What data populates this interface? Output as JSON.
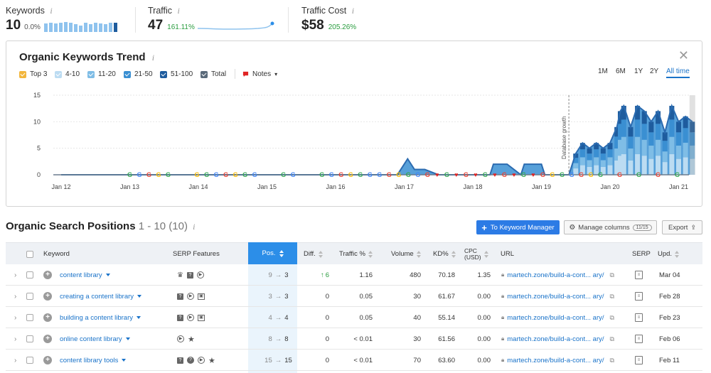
{
  "metrics": {
    "keywords": {
      "label": "Keywords",
      "value": "10",
      "delta": "0.0%"
    },
    "traffic": {
      "label": "Traffic",
      "value": "47",
      "delta": "161.11%"
    },
    "traffic_cost": {
      "label": "Traffic Cost",
      "value": "$58",
      "delta": "205.26%"
    },
    "info_glyph": "i"
  },
  "trend": {
    "title": "Organic Keywords Trend",
    "legend": [
      {
        "label": "Top 3",
        "color": "#f2b63c"
      },
      {
        "label": "4-10",
        "color": "#bcdcf2"
      },
      {
        "label": "11-20",
        "color": "#7fbde6"
      },
      {
        "label": "21-50",
        "color": "#3a8fd2"
      },
      {
        "label": "51-100",
        "color": "#1e5c9e"
      },
      {
        "label": "Total",
        "color": "#5a6a7a"
      }
    ],
    "notes_label": "Notes",
    "ranges": [
      "1M",
      "6M",
      "1Y",
      "2Y",
      "All time"
    ],
    "active_range": "All time",
    "annotation": "Database growth"
  },
  "chart_data": {
    "type": "area",
    "title": "Organic Keywords Trend",
    "x_tick_labels": [
      "Jan 12",
      "Jan 13",
      "Jan 14",
      "Jan 15",
      "Jan 16",
      "Jan 17",
      "Jan 18",
      "Jan 19",
      "Jan 20",
      "Jan 21"
    ],
    "y_ticks": [
      0,
      5,
      10,
      15
    ],
    "ylim": [
      0,
      15
    ],
    "grid": true,
    "vertical_marker": {
      "x": "Jan 19.4",
      "label": "Database growth"
    },
    "series": [
      {
        "name": "Total",
        "x": [
          12.0,
          16.9,
          17.05,
          17.15,
          17.3,
          17.5,
          18.25,
          18.3,
          18.5,
          18.7,
          18.75,
          19.0,
          19.05,
          19.4,
          19.5,
          19.6,
          19.7,
          19.8,
          19.9,
          20.0,
          20.1,
          20.15,
          20.2,
          20.3,
          20.4,
          20.5,
          20.6,
          20.7,
          20.8,
          20.9,
          21.0,
          21.1,
          21.2
        ],
        "values": [
          0,
          0,
          3,
          1,
          1,
          0,
          0,
          2,
          2,
          0,
          2,
          2,
          0,
          0,
          4,
          6,
          5,
          6,
          5,
          6,
          9,
          12,
          13,
          9,
          13,
          12,
          10,
          12,
          8,
          13,
          10,
          11,
          10
        ]
      },
      {
        "name": "51-100",
        "values": []
      },
      {
        "name": "21-50",
        "values": []
      },
      {
        "name": "11-20",
        "values": []
      },
      {
        "name": "4-10",
        "values": []
      },
      {
        "name": "Top 3",
        "values": []
      }
    ]
  },
  "positions": {
    "title": "Organic Search Positions",
    "range": "1 - 10 (10)",
    "to_keyword_manager": "To Keyword Manager",
    "manage_columns": "Manage columns",
    "columns_count": "11/15",
    "export": "Export",
    "headers": {
      "keyword": "Keyword",
      "serp_features": "SERP Features",
      "pos": "Pos.",
      "diff": "Diff.",
      "traffic": "Traffic %",
      "volume": "Volume",
      "kd": "KD%",
      "cpc": "CPC\n(USD)",
      "url": "URL",
      "serp": "SERP",
      "upd": "Upd."
    },
    "rows": [
      {
        "keyword": "content library",
        "serp": [
          "crown",
          "faq",
          "video"
        ],
        "pos_from": "9",
        "pos_to": "3",
        "diff": "6",
        "diff_dir": "up",
        "traffic": "1.16",
        "volume": "480",
        "kd": "70.18",
        "cpc": "1.35",
        "url": "martech.zone/build-a-cont... ary/",
        "upd": "Mar 04"
      },
      {
        "keyword": "creating a content library",
        "serp": [
          "faq",
          "video",
          "image"
        ],
        "pos_from": "3",
        "pos_to": "3",
        "diff": "0",
        "diff_dir": "",
        "traffic": "0.05",
        "volume": "30",
        "kd": "61.67",
        "cpc": "0.00",
        "url": "martech.zone/build-a-cont... ary/",
        "upd": "Feb 28"
      },
      {
        "keyword": "building a content library",
        "serp": [
          "faq",
          "video",
          "image"
        ],
        "pos_from": "4",
        "pos_to": "4",
        "diff": "0",
        "diff_dir": "",
        "traffic": "0.05",
        "volume": "40",
        "kd": "55.14",
        "cpc": "0.00",
        "url": "martech.zone/build-a-cont... ary/",
        "upd": "Feb 23"
      },
      {
        "keyword": "online content library",
        "serp": [
          "video",
          "star"
        ],
        "pos_from": "8",
        "pos_to": "8",
        "diff": "0",
        "diff_dir": "",
        "traffic": "< 0.01",
        "volume": "30",
        "kd": "61.56",
        "cpc": "0.00",
        "url": "martech.zone/build-a-cont... ary/",
        "upd": "Feb 06"
      },
      {
        "keyword": "content library tools",
        "serp": [
          "faq",
          "question",
          "video",
          "star"
        ],
        "pos_from": "15",
        "pos_to": "15",
        "diff": "0",
        "diff_dir": "",
        "traffic": "< 0.01",
        "volume": "70",
        "kd": "63.60",
        "cpc": "0.00",
        "url": "martech.zone/build-a-cont... ary/",
        "upd": "Feb 11"
      }
    ],
    "arrow": "→"
  }
}
